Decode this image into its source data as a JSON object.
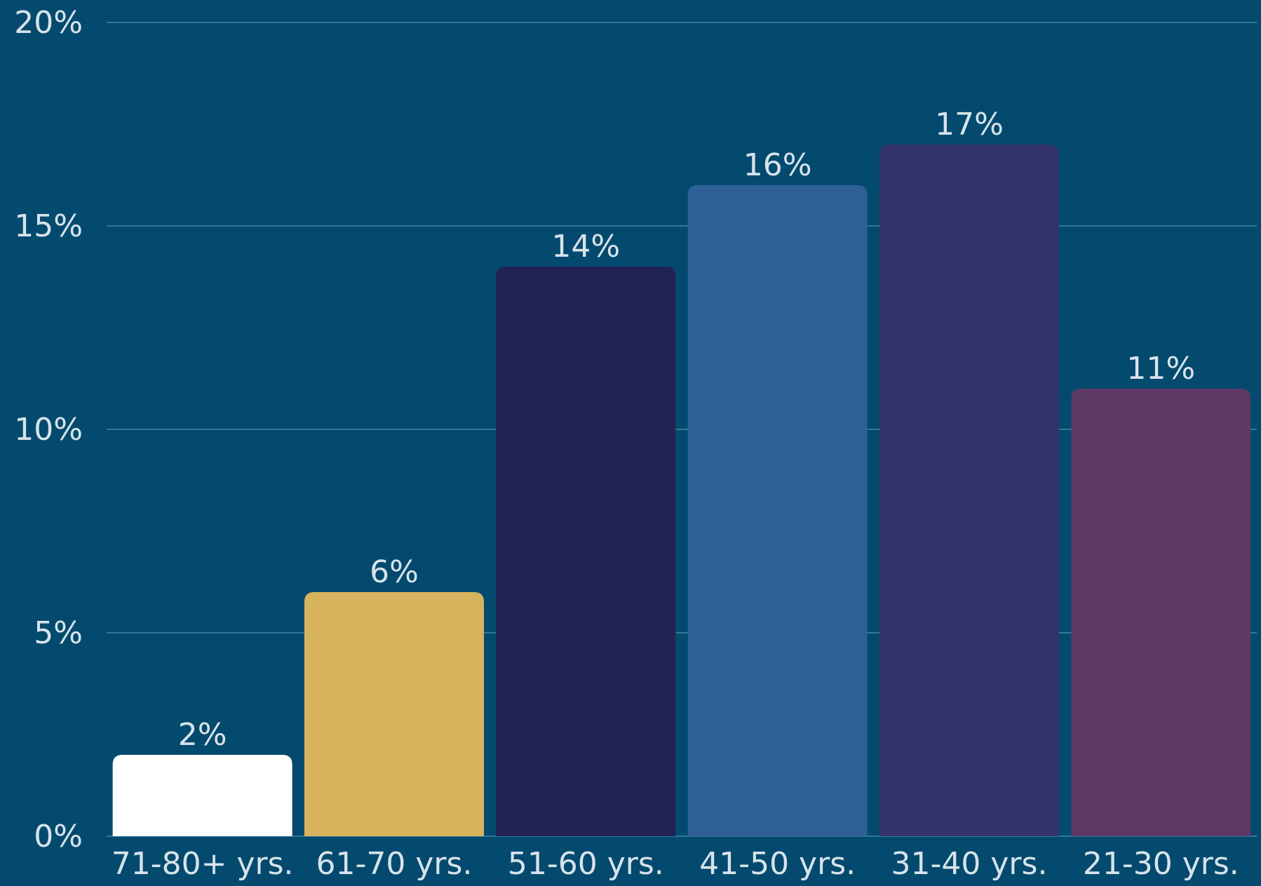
{
  "chart_data": {
    "type": "bar",
    "title": "",
    "xlabel": "",
    "ylabel": "",
    "categories": [
      "71-80+ yrs.",
      "61-70 yrs.",
      "51-60 yrs.",
      "41-50 yrs.",
      "31-40 yrs.",
      "21-30 yrs."
    ],
    "values": [
      2,
      6,
      14,
      16,
      17,
      11
    ],
    "value_labels": [
      "2%",
      "6%",
      "14%",
      "16%",
      "17%",
      "11%"
    ],
    "bar_colors": [
      "#ffffff",
      "#d8b35e",
      "#212355",
      "#2e6096",
      "#32346a",
      "#5d3a65"
    ],
    "ylim": [
      0,
      20
    ],
    "yticks": [
      0,
      5,
      10,
      15,
      20
    ],
    "ytick_labels": [
      "0%",
      "5%",
      "10%",
      "15%",
      "20%"
    ],
    "grid": true,
    "legend": "none"
  },
  "colors": {
    "background": "#034a6e",
    "gridline": "#2f7a96",
    "text": "#d8e3ea"
  }
}
